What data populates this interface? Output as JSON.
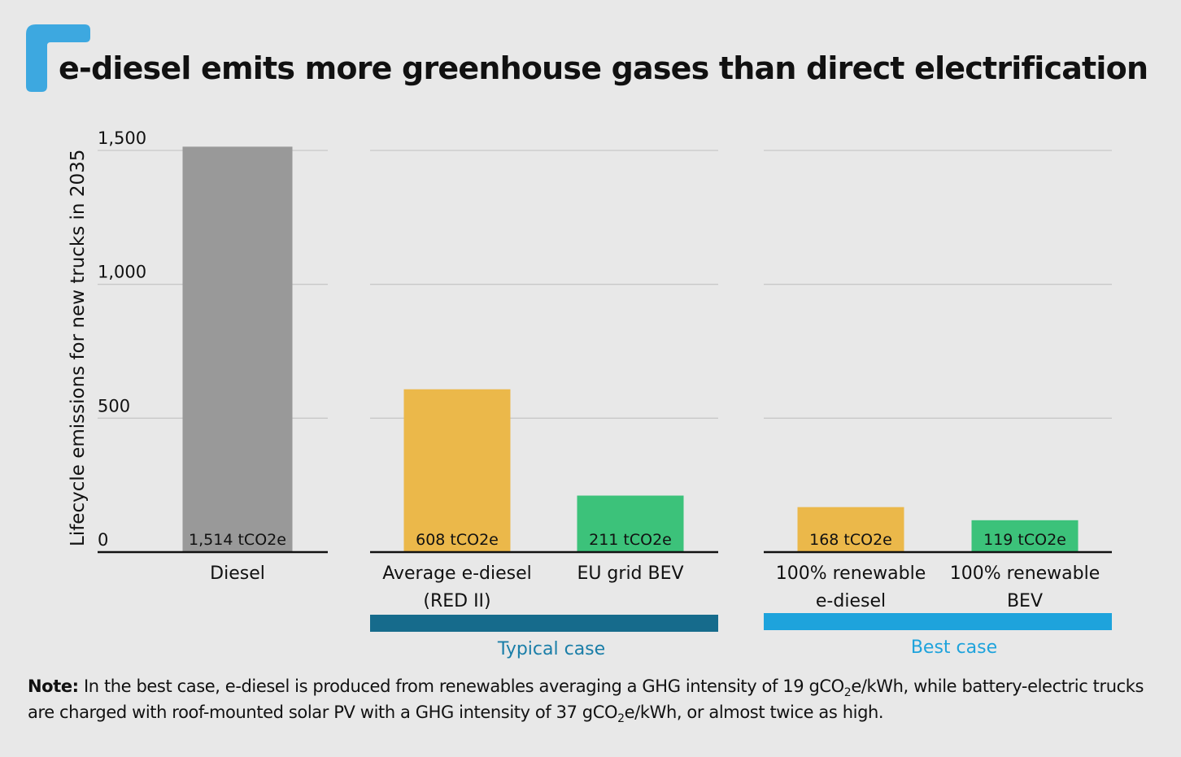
{
  "colors": {
    "background": "#e8e8e8",
    "diesel": "#999999",
    "e_diesel": "#ebb84a",
    "bev": "#3cc27a",
    "typical_band": "#166b8c",
    "best_band": "#1ea3dc",
    "typical_label": "#1a7ea8",
    "best_label": "#1ea3dc",
    "corner_mark": "#3da8e0",
    "gridline": "#c8c8c8"
  },
  "chart_data": {
    "type": "bar",
    "title": "e-diesel emits more greenhouse gases than direct electrification",
    "ylabel": "Lifecycle emissions for new trucks in 2035",
    "xlabel": "",
    "ylim": [
      0,
      1500
    ],
    "yticks": [
      {
        "value": 0,
        "label": "0"
      },
      {
        "value": 500,
        "label": "500"
      },
      {
        "value": 1000,
        "label": "1,000"
      },
      {
        "value": 1500,
        "label": "1,500"
      }
    ],
    "groups": [
      {
        "name": "",
        "bars": [
          {
            "category": [
              "Diesel"
            ],
            "value": 1514,
            "label": "1,514 tCO2e",
            "color_key": "diesel"
          }
        ]
      },
      {
        "name": "Typical case",
        "bars": [
          {
            "category": [
              "Average e-diesel",
              "(RED II)"
            ],
            "value": 608,
            "label": "608 tCO2e",
            "color_key": "e_diesel"
          },
          {
            "category": [
              "EU grid BEV"
            ],
            "value": 211,
            "label": "211 tCO2e",
            "color_key": "bev"
          }
        ]
      },
      {
        "name": "Best case",
        "bars": [
          {
            "category": [
              "100% renewable",
              "e-diesel"
            ],
            "value": 168,
            "label": "168 tCO2e",
            "color_key": "e_diesel"
          },
          {
            "category": [
              "100% renewable",
              "BEV"
            ],
            "value": 119,
            "label": "119 tCO2e",
            "color_key": "bev"
          }
        ]
      }
    ],
    "grid": true
  },
  "note": {
    "prefix": "Note:",
    "part1": " In the best case, e-diesel is produced from renewables averaging a GHG intensity of 19 gCO",
    "sub1": "2",
    "part2": "e/kWh, while battery-electric trucks are charged with roof-mounted solar PV with a GHG intensity of 37 gCO",
    "sub2": "2",
    "part3": "e/kWh, or almost twice as high."
  }
}
